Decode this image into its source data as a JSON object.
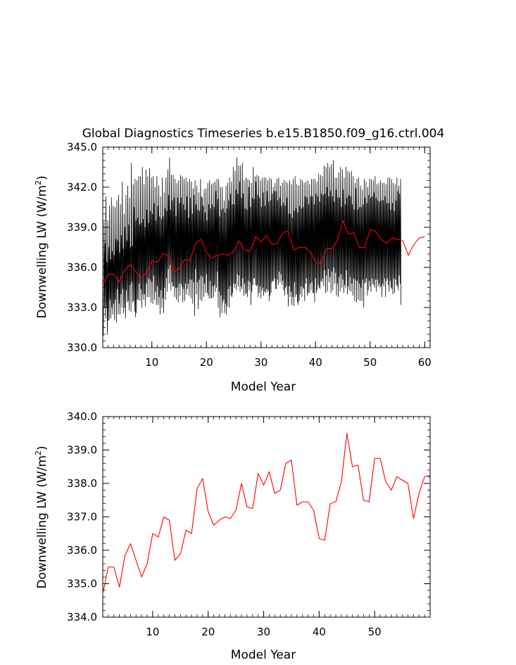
{
  "chart_data": [
    {
      "type": "line",
      "title": "Global Diagnostics Timeseries b.e15.B1850.f09_g16.ctrl.004",
      "xlabel": "Model Year",
      "ylabel_main": "Downwelling LW (W/m",
      "ylabel_sup": "2",
      "ylabel_close": ")",
      "xlim": [
        1,
        61
      ],
      "ylim": [
        330,
        345
      ],
      "xticks": [
        10,
        20,
        30,
        40,
        50,
        60
      ],
      "yticks": [
        "330.0",
        "333.0",
        "336.0",
        "339.0",
        "342.0",
        "345.0"
      ],
      "ytick_values": [
        330,
        333,
        336,
        339,
        342,
        345
      ],
      "series": [
        {
          "color": "#000000",
          "kind": "monthly",
          "x_start": 1.0,
          "x_step": 0.0833333,
          "values": [
            332.5,
            330.9,
            334.5,
            339.4,
            333.0,
            337.8,
            332.2,
            341.3,
            333.0,
            336.4,
            331.0,
            339.5,
            332.0,
            337.5,
            332.1,
            340.6,
            333.6,
            336.6,
            332.2,
            341.2,
            333.0,
            337.2,
            332.5,
            340.6,
            333.3,
            336.9,
            332.1,
            340.5,
            333.6,
            338.1,
            331.9,
            341.0,
            334.4,
            338.0,
            332.5,
            341.4,
            333.3,
            337.1,
            332.5,
            340.7,
            334.0,
            338.4,
            333.0,
            342.4,
            334.4,
            337.4,
            332.6,
            340.0,
            333.0,
            339.0,
            332.2,
            341.4,
            334.3,
            338.0,
            333.4,
            342.1,
            333.5,
            339.2,
            332.8,
            341.2,
            334.7,
            337.5,
            332.7,
            343.8,
            334.9,
            337.6,
            333.4,
            342.2,
            333.5,
            340.5,
            332.7,
            342.6,
            332.3,
            339.5,
            332.6,
            342.5,
            333.6,
            339.7,
            333.6,
            342.8,
            334.8,
            339.2,
            333.5,
            342.8,
            334.4,
            339.3,
            333.0,
            343.5,
            334.0,
            339.6,
            333.6,
            342.2,
            334.0,
            339.0,
            333.1,
            343.3,
            334.8,
            340.3,
            333.8,
            342.8,
            335.2,
            339.3,
            333.8,
            343.4,
            335.1,
            340.2,
            333.4,
            342.7,
            334.9,
            340.0,
            333.3,
            342.8,
            335.4,
            340.8,
            333.6,
            342.0,
            334.2,
            339.5,
            333.2,
            342.8,
            334.6,
            340.6,
            333.2,
            342.1,
            333.8,
            339.8,
            332.5,
            341.3,
            334.3,
            339.6,
            333.0,
            342.7,
            333.7,
            339.8,
            332.6,
            341.6,
            334.5,
            340.4,
            333.6,
            342.7,
            335.2,
            340.2,
            334.2,
            343.3,
            335.9,
            341.4,
            334.8,
            344.2,
            336.2,
            340.3,
            334.3,
            342.9,
            334.9,
            341.0,
            334.6,
            342.9,
            334.6,
            341.2,
            333.8,
            342.6,
            334.5,
            339.8,
            333.6,
            342.3,
            334.5,
            341.2,
            333.4,
            342.5,
            334.8,
            340.8,
            333.9,
            342.9,
            334.8,
            341.2,
            334.6,
            342.8,
            333.4,
            340.7,
            334.4,
            342.6,
            333.5,
            340.3,
            334.8,
            342.7,
            334.0,
            341.3,
            334.4,
            342.4,
            334.8,
            339.7,
            333.9,
            342.6,
            335.1,
            341.2,
            333.7,
            342.4,
            335.1,
            340.0,
            333.3,
            341.9,
            334.9,
            341.4,
            332.4,
            342.5,
            335.9,
            340.7,
            334.0,
            342.1,
            334.9,
            340.3,
            332.9,
            341.6,
            335.1,
            340.2,
            333.6,
            342.6,
            335.4,
            341.3,
            333.5,
            341.2,
            335.3,
            340.6,
            333.8,
            341.8,
            334.8,
            340.1,
            334.1,
            341.9,
            335.5,
            339.5,
            334.1,
            342.3,
            333.9,
            340.7,
            333.7,
            342.5,
            335.0,
            340.4,
            333.7,
            342.2,
            333.7,
            340.7,
            334.6,
            342.3,
            333.8,
            340.5,
            334.7,
            342.4,
            334.2,
            341.7,
            334.5,
            342.6,
            335.7,
            341.1,
            333.0,
            342.6,
            334.2,
            339.8,
            332.3,
            342.0,
            333.9,
            340.3,
            332.6,
            342.0,
            333.4,
            340.4,
            333.6,
            341.0,
            332.6,
            340.1,
            333.3,
            342.1,
            332.5,
            340.4,
            333.1,
            342.3,
            334.4,
            341.0,
            333.0,
            342.7,
            334.6,
            341.5,
            333.9,
            342.4,
            333.8,
            340.7,
            334.1,
            343.5,
            334.8,
            340.7,
            334.5,
            343.2,
            334.8,
            341.8,
            334.3,
            344.2,
            335.5,
            341.5,
            334.6,
            343.6,
            335.4,
            342.4,
            334.2,
            343.6,
            334.6,
            341.2,
            334.4,
            343.8,
            335.2,
            341.5,
            333.9,
            342.5,
            334.8,
            340.4,
            334.0,
            342.7,
            334.1,
            340.3,
            333.8,
            342.6,
            335.0,
            342.0,
            334.3,
            342.5,
            334.9,
            340.5,
            333.2,
            342.3,
            334.2,
            341.2,
            334.7,
            343.5,
            335.2,
            341.1,
            335.2,
            342.8,
            334.7,
            342.4,
            334.6,
            342.9,
            334.7,
            341.4,
            333.8,
            342.8,
            334.1,
            341.2,
            334.6,
            342.5,
            333.7,
            340.5,
            334.3,
            342.7,
            334.5,
            341.6,
            333.9,
            342.7,
            334.2,
            340.6,
            334.1,
            342.7,
            334.4,
            341.7,
            334.2,
            342.5,
            334.3,
            340.9,
            333.5,
            342.7,
            333.9,
            341.0,
            334.1,
            342.6,
            334.9,
            341.5,
            335.0,
            342.0,
            335.0,
            341.7,
            335.2,
            342.3,
            334.4,
            341.7,
            334.4,
            342.6,
            335.1,
            341.0,
            334.7,
            342.7,
            335.7,
            341.2,
            334.9,
            342.1,
            335.5,
            340.6,
            334.7,
            342.3,
            335.0,
            340.8,
            334.3,
            342.5,
            333.9,
            340.6,
            334.5,
            342.4,
            334.6,
            341.2,
            334.0,
            342.3,
            333.1,
            340.0,
            334.6,
            342.5,
            333.8,
            340.0,
            334.2,
            342.2,
            333.2,
            339.7,
            333.8,
            342.6,
            333.1,
            340.2,
            334.9,
            342.8,
            333.8,
            340.4,
            334.0,
            342.2,
            333.4,
            340.1,
            333.2,
            342.1,
            333.5,
            340.6,
            334.0,
            342.6,
            334.6,
            340.4,
            333.8,
            342.5,
            334.5,
            340.5,
            334.4,
            342.3,
            333.5,
            341.3,
            334.8,
            342.4,
            335.2,
            341.2,
            333.9,
            342.5,
            334.1,
            340.7,
            334.1,
            342.2,
            334.8,
            341.3,
            334.3,
            342.6,
            334.9,
            341.3,
            334.1,
            342.6,
            334.1,
            340.7,
            333.4,
            342.6,
            335.2,
            341.5,
            334.1,
            342.4,
            334.3,
            341.3,
            334.7,
            343.0,
            334.5,
            340.9,
            334.4,
            342.9,
            335.0,
            341.5,
            334.9,
            342.8,
            335.2,
            341.4,
            334.6,
            343.6,
            335.8,
            341.5,
            334.1,
            343.5,
            335.4,
            342.0,
            334.2,
            343.8,
            335.9,
            341.3,
            334.9,
            343.5,
            335.3,
            341.7,
            334.1,
            343.7,
            335.7,
            341.3,
            334.3,
            344.0,
            336.0,
            340.9,
            334.8,
            342.7,
            335.6,
            341.8,
            333.9,
            342.7,
            334.8,
            341.2,
            333.8,
            343.1,
            335.3,
            341.2,
            334.2,
            343.5,
            335.5,
            340.5,
            334.5,
            343.3,
            335.1,
            341.8,
            334.1,
            342.7,
            334.7,
            340.7,
            334.5,
            343.5,
            335.8,
            341.2,
            334.0,
            343.2,
            334.6,
            341.4,
            334.3,
            343.1,
            335.3,
            341.3,
            334.2,
            343.2,
            334.8,
            340.7,
            333.9,
            342.8,
            335.2,
            340.3,
            333.5,
            342.3,
            335.1,
            341.9,
            333.4,
            342.6,
            335.0,
            340.3,
            333.6,
            342.7,
            334.8,
            340.5,
            333.5,
            342.1,
            334.5,
            340.5,
            333.5,
            341.8,
            335.1,
            340.7,
            333.0,
            342.6,
            334.8,
            341.2,
            334.9,
            342.4,
            335.2,
            340.8,
            333.9,
            342.0,
            334.3,
            341.4,
            335.0,
            342.6,
            334.6,
            341.2,
            334.2,
            342.6,
            335.2,
            341.3,
            334.8,
            342.5,
            334.7,
            341.6,
            334.5,
            342.8,
            335.1,
            341.2,
            334.2,
            342.2,
            335.1,
            341.0,
            334.6,
            342.3,
            334.8,
            340.9,
            334.5,
            342.5,
            334.6,
            341.0,
            333.8,
            342.3,
            334.8,
            341.0,
            334.6,
            342.3,
            335.2,
            341.3,
            333.8,
            342.2,
            335.0,
            340.8,
            335.2,
            342.7,
            334.7,
            340.8,
            334.2,
            342.7,
            335.0,
            340.3,
            334.5,
            342.6,
            334.4,
            340.8,
            334.0,
            342.3,
            335.2,
            340.2,
            334.1,
            342.2,
            335.1,
            341.0,
            334.7,
            342.7,
            334.6,
            341.7,
            334.3,
            342.1,
            335.4,
            341.5,
            334.8,
            342.6,
            333.2
          ]
        },
        {
          "color": "#ff0000",
          "kind": "annual",
          "x": [
            1,
            2,
            3,
            4,
            5,
            6,
            7,
            8,
            9,
            10,
            11,
            12,
            13,
            14,
            15,
            16,
            17,
            18,
            19,
            20,
            21,
            22,
            23,
            24,
            25,
            26,
            27,
            28,
            29,
            30,
            31,
            32,
            33,
            34,
            35,
            36,
            37,
            38,
            39,
            40,
            41,
            42,
            43,
            44,
            45,
            46,
            47,
            48,
            49,
            50,
            51,
            52,
            53,
            54,
            55,
            56,
            57,
            58,
            59,
            60
          ],
          "values": [
            334.7,
            335.5,
            335.5,
            334.9,
            335.8,
            336.2,
            335.7,
            335.2,
            335.6,
            336.5,
            336.4,
            337.0,
            336.9,
            335.7,
            335.9,
            336.6,
            336.5,
            337.8,
            338.1,
            337.1,
            336.7,
            336.9,
            337.0,
            336.9,
            337.2,
            338.0,
            337.3,
            337.2,
            338.3,
            337.9,
            338.4,
            337.7,
            337.8,
            338.6,
            338.7,
            337.3,
            337.5,
            337.5,
            337.2,
            336.4,
            336.3,
            337.4,
            337.4,
            338.0,
            339.5,
            338.5,
            338.6,
            337.5,
            337.5,
            338.8,
            338.7,
            338.1,
            337.8,
            338.2,
            338.1,
            338.0,
            336.9,
            337.7,
            338.2,
            338.3
          ]
        }
      ]
    },
    {
      "type": "line",
      "xlabel": "Model Year",
      "ylabel_main": "Downwelling LW (W/m",
      "ylabel_sup": "2",
      "ylabel_close": ")",
      "xlim": [
        1,
        60
      ],
      "ylim": [
        334,
        340
      ],
      "xticks": [
        10,
        20,
        30,
        40,
        50
      ],
      "yticks": [
        "334.0",
        "335.0",
        "336.0",
        "337.0",
        "338.0",
        "339.0",
        "340.0"
      ],
      "ytick_values": [
        334,
        335,
        336,
        337,
        338,
        339,
        340
      ],
      "series": [
        {
          "color": "#ff0000",
          "kind": "annual",
          "x": [
            1,
            2,
            3,
            4,
            5,
            6,
            7,
            8,
            9,
            10,
            11,
            12,
            13,
            14,
            15,
            16,
            17,
            18,
            19,
            20,
            21,
            22,
            23,
            24,
            25,
            26,
            27,
            28,
            29,
            30,
            31,
            32,
            33,
            34,
            35,
            36,
            37,
            38,
            39,
            40,
            41,
            42,
            43,
            44,
            45,
            46,
            47,
            48,
            49,
            50,
            51,
            52,
            53,
            54,
            55,
            56,
            57,
            58,
            59,
            60
          ],
          "values": [
            334.7,
            335.5,
            335.5,
            334.9,
            335.85,
            336.2,
            335.7,
            335.2,
            335.6,
            336.5,
            336.4,
            337.0,
            336.9,
            335.7,
            335.9,
            336.6,
            336.5,
            337.85,
            338.15,
            337.15,
            336.75,
            336.9,
            337.0,
            336.95,
            337.2,
            338.0,
            337.3,
            337.25,
            338.3,
            337.95,
            338.35,
            337.7,
            337.8,
            338.6,
            338.7,
            337.35,
            337.45,
            337.45,
            337.2,
            336.35,
            336.3,
            337.4,
            337.45,
            338.05,
            339.5,
            338.5,
            338.55,
            337.5,
            337.45,
            338.75,
            338.75,
            338.05,
            337.8,
            338.2,
            338.1,
            338.0,
            336.95,
            337.7,
            338.2,
            338.25
          ]
        }
      ]
    }
  ]
}
